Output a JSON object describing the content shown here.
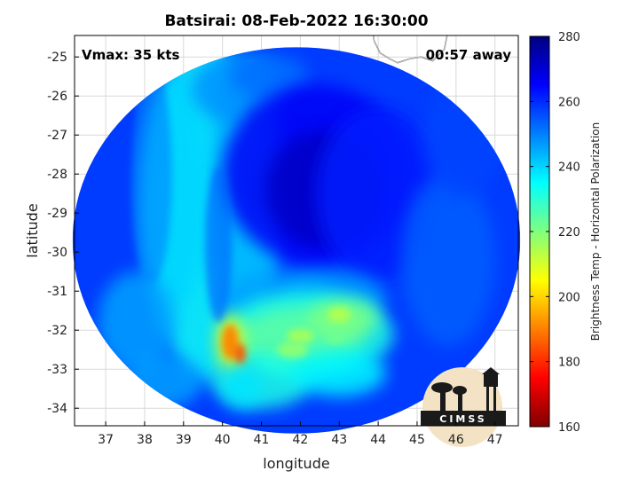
{
  "chart_data": {
    "type": "heatmap",
    "title": "Batsirai: 08-Feb-2022 16:30:00",
    "xlabel": "longitude",
    "ylabel": "latitude",
    "xlim": [
      36.2,
      47.6
    ],
    "ylim": [
      -34.45,
      -24.45
    ],
    "xticks": [
      37,
      38,
      39,
      40,
      41,
      42,
      43,
      44,
      45,
      46,
      47
    ],
    "yticks": [
      -25,
      -26,
      -27,
      -28,
      -29,
      -30,
      -31,
      -32,
      -33,
      -34
    ],
    "grid": true,
    "colormap": "jet",
    "colorbar": {
      "label": "Brightness Temp - Horizontal Polarization",
      "range": [
        160,
        280
      ],
      "ticks": [
        280,
        260,
        240,
        220,
        200,
        180,
        160
      ]
    },
    "swath": {
      "center_lon": 41.9,
      "center_lat": -29.7,
      "radius_lon": 5.75,
      "radius_lat": 4.95
    },
    "features": [
      {
        "name": "eye",
        "lon": 42.3,
        "lat": -28.2,
        "value": 270
      },
      {
        "name": "southern band",
        "lon": 42.2,
        "lat": -32.1,
        "value": 222
      },
      {
        "name": "southwest convection",
        "lon": 40.15,
        "lat": -32.2,
        "value": 195
      }
    ],
    "coastline": [
      [
        45.8,
        -24.3
      ],
      [
        45.7,
        -24.8
      ],
      [
        45.4,
        -25.1
      ],
      [
        45.1,
        -25.0
      ],
      [
        44.8,
        -25.05
      ],
      [
        44.5,
        -25.15
      ],
      [
        44.3,
        -25.05
      ],
      [
        44.05,
        -24.9
      ],
      [
        43.9,
        -24.6
      ],
      [
        43.85,
        -24.3
      ]
    ],
    "annotations": {
      "vmax": "Vmax: 35 kts",
      "time_offset": "00:57 away"
    }
  },
  "logo": {
    "text": "CIMSS"
  },
  "colors": {
    "background": "#ffffff",
    "axes_border": "#000000",
    "grid": "#d9d9d9"
  }
}
